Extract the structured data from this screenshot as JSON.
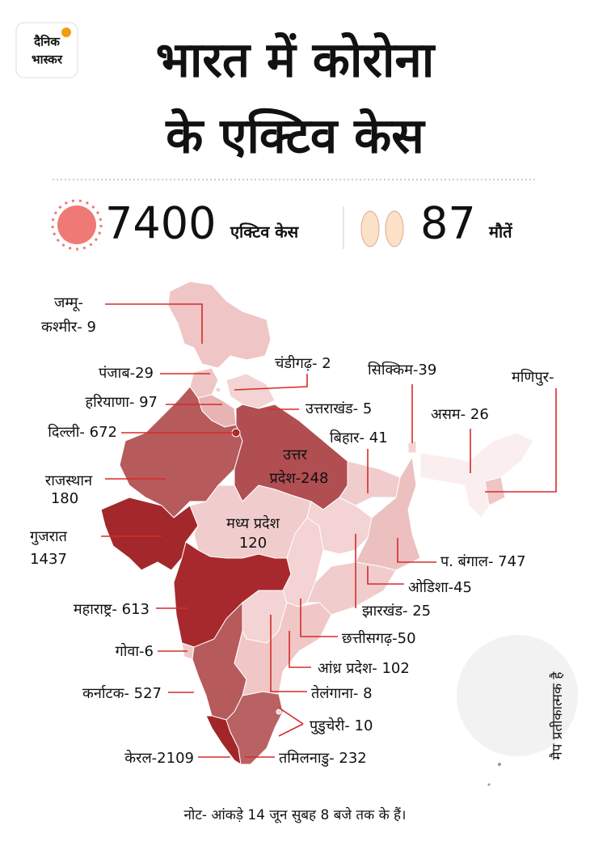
{
  "logo": {
    "line1": "दैनिक",
    "line2": "भास्कर"
  },
  "title": {
    "line1": "भारत में कोरोना",
    "line2": "के एक्टिव केस"
  },
  "stats": {
    "active_cases": "7400",
    "active_label": "एक्टिव केस",
    "deaths": "87",
    "deaths_label": "मौतें"
  },
  "states": [
    {
      "lines": [
        "जम्मू-",
        "कश्मीर- 9"
      ],
      "color": "#efc5c5"
    },
    {
      "lines": [
        "पंजाब-29"
      ],
      "color": "#efc5c5"
    },
    {
      "lines": [
        "चंडीगढ़- 2"
      ],
      "color": "#f3d3d3"
    },
    {
      "lines": [
        "सिक्किम-39"
      ],
      "color": "#f3d3d3"
    },
    {
      "lines": [
        "मणिपुर-"
      ],
      "color": "#efc5c5"
    },
    {
      "lines": [
        "हरियाणा- 97"
      ],
      "color": "#e8b3b3"
    },
    {
      "lines": [
        "उत्तराखंड- 5"
      ],
      "color": "#f3d3d3"
    },
    {
      "lines": [
        "असम- 26"
      ],
      "color": "#fbeeee"
    },
    {
      "lines": [
        "दिल्ली- 672"
      ],
      "color": "#a8292d"
    },
    {
      "lines": [
        "बिहार- 41"
      ],
      "color": "#f1cccc"
    },
    {
      "lines": [
        "उत्तर",
        "प्रदेश-248"
      ],
      "color": "#b04e52"
    },
    {
      "lines": [
        "राजस्थान",
        "180"
      ],
      "color": "#b65a5c"
    },
    {
      "lines": [
        "मध्य प्रदेश",
        "120"
      ],
      "color": "#f1cccc"
    },
    {
      "lines": [
        "गुजरात",
        "1437"
      ],
      "color": "#a3282b"
    },
    {
      "lines": [
        "प. बंगाल- 747"
      ],
      "color": "#edc0c0"
    },
    {
      "lines": [
        "ओडिशा-45"
      ],
      "color": "#f1cccc"
    },
    {
      "lines": [
        "महाराष्ट्र- 613"
      ],
      "color": "#a8292d"
    },
    {
      "lines": [
        "झारखंड- 25"
      ],
      "color": "#f3d3d3"
    },
    {
      "lines": [
        "छत्तीसगढ़-50"
      ],
      "color": "#f3d3d3"
    },
    {
      "lines": [
        "गोवा-6"
      ],
      "color": "#f0caca"
    },
    {
      "lines": [
        "आंध्र प्रदेश- 102"
      ],
      "color": "#f0c6c6"
    },
    {
      "lines": [
        "कर्नाटक- 527"
      ],
      "color": "#b65a5c"
    },
    {
      "lines": [
        "तेलंगाना- 8"
      ],
      "color": "#f3d3d3"
    },
    {
      "lines": [
        "पुडुचेरी- 10"
      ],
      "color": "#f3d3d3"
    },
    {
      "lines": [
        "केरल-2109"
      ],
      "color": "#a22629"
    },
    {
      "lines": [
        "तमिलनाडु- 232"
      ],
      "color": "#b86264"
    }
  ],
  "side_note": "मैप प्रतीकात्मक है",
  "footnote": "नोट- आंकड़े 14 जून सुबह 8 बजे तक के हैं।"
}
